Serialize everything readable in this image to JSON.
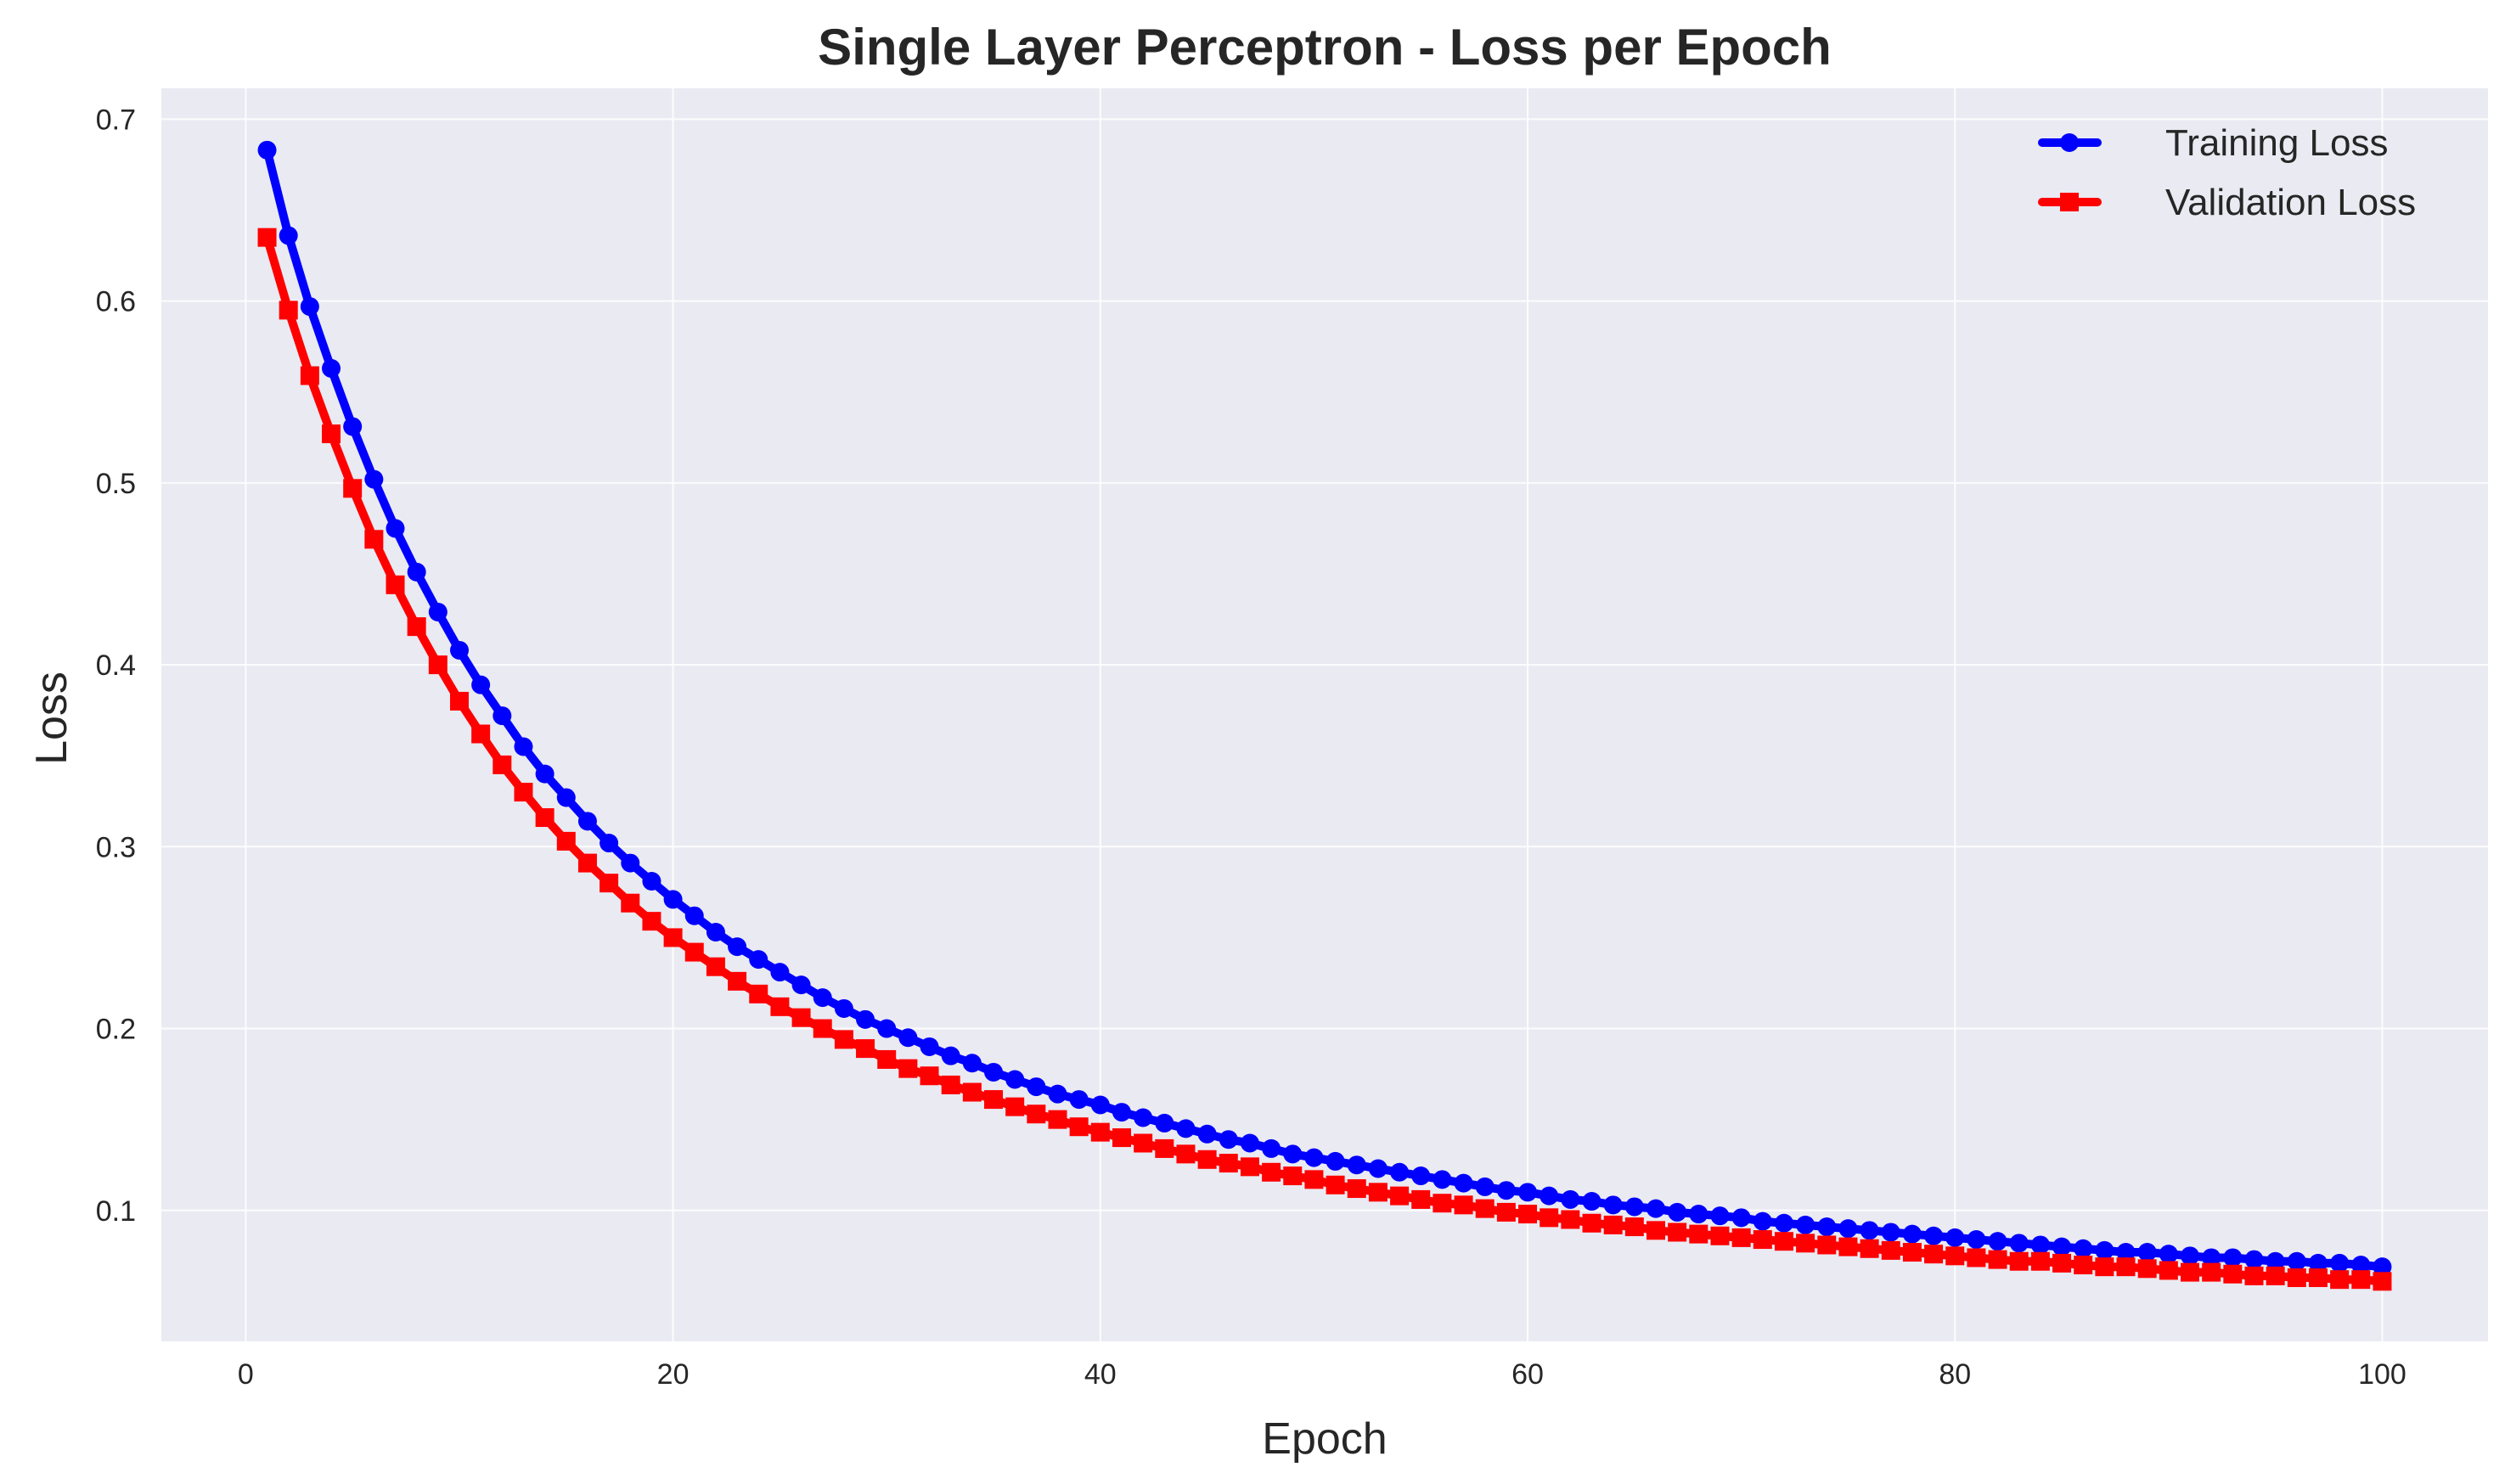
{
  "chart_data": {
    "type": "line",
    "title": "Single Layer Perceptron - Loss per Epoch",
    "xlabel": "Epoch",
    "ylabel": "Loss",
    "xlim": [
      -3.95,
      104.95
    ],
    "ylim": [
      0.028,
      0.717
    ],
    "xticks": [
      0,
      20,
      40,
      60,
      80,
      100
    ],
    "yticks": [
      0.1,
      0.2,
      0.3,
      0.4,
      0.5,
      0.6,
      0.7
    ],
    "grid": true,
    "legend_position": "top-right",
    "series": [
      {
        "name": "Training Loss",
        "color": "#0000ff",
        "marker": "circle",
        "train": true
      },
      {
        "name": "Validation Loss",
        "color": "#ff0000",
        "marker": "square",
        "train": false
      }
    ],
    "x": [
      1,
      2,
      3,
      4,
      5,
      6,
      7,
      8,
      9,
      10,
      11,
      12,
      13,
      14,
      15,
      16,
      17,
      18,
      19,
      20,
      21,
      22,
      23,
      24,
      25,
      26,
      27,
      28,
      29,
      30,
      31,
      32,
      33,
      34,
      35,
      36,
      37,
      38,
      39,
      40,
      41,
      42,
      43,
      44,
      45,
      46,
      47,
      48,
      49,
      50,
      51,
      52,
      53,
      54,
      55,
      56,
      57,
      58,
      59,
      60,
      61,
      62,
      63,
      64,
      65,
      66,
      67,
      68,
      69,
      70,
      71,
      72,
      73,
      74,
      75,
      76,
      77,
      78,
      79,
      80,
      81,
      82,
      83,
      84,
      85,
      86,
      87,
      88,
      89,
      90,
      91,
      92,
      93,
      94,
      95,
      96,
      97,
      98,
      99,
      100
    ],
    "training": [
      0.683,
      0.636,
      0.597,
      0.563,
      0.531,
      0.502,
      0.475,
      0.451,
      0.429,
      0.408,
      0.389,
      0.372,
      0.355,
      0.34,
      0.327,
      0.314,
      0.302,
      0.291,
      0.281,
      0.271,
      0.262,
      0.253,
      0.245,
      0.238,
      0.231,
      0.224,
      0.217,
      0.211,
      0.205,
      0.2,
      0.195,
      0.19,
      0.185,
      0.181,
      0.176,
      0.172,
      0.168,
      0.164,
      0.161,
      0.158,
      0.154,
      0.151,
      0.148,
      0.145,
      0.142,
      0.139,
      0.137,
      0.134,
      0.131,
      0.129,
      0.127,
      0.125,
      0.123,
      0.121,
      0.119,
      0.117,
      0.115,
      0.113,
      0.111,
      0.11,
      0.108,
      0.106,
      0.105,
      0.103,
      0.102,
      0.101,
      0.099,
      0.098,
      0.097,
      0.096,
      0.094,
      0.093,
      0.092,
      0.091,
      0.09,
      0.089,
      0.088,
      0.087,
      0.086,
      0.085,
      0.084,
      0.083,
      0.082,
      0.081,
      0.08,
      0.079,
      0.078,
      0.077,
      0.077,
      0.076,
      0.075,
      0.074,
      0.074,
      0.073,
      0.072,
      0.072,
      0.071,
      0.071,
      0.07,
      0.069
    ],
    "validation": [
      0.635,
      0.595,
      0.559,
      0.527,
      0.497,
      0.469,
      0.444,
      0.421,
      0.4,
      0.38,
      0.362,
      0.345,
      0.33,
      0.316,
      0.303,
      0.291,
      0.28,
      0.269,
      0.259,
      0.25,
      0.242,
      0.234,
      0.226,
      0.219,
      0.212,
      0.206,
      0.2,
      0.194,
      0.189,
      0.183,
      0.178,
      0.174,
      0.169,
      0.165,
      0.161,
      0.157,
      0.153,
      0.15,
      0.146,
      0.143,
      0.14,
      0.137,
      0.134,
      0.131,
      0.128,
      0.126,
      0.124,
      0.121,
      0.119,
      0.117,
      0.114,
      0.112,
      0.11,
      0.108,
      0.106,
      0.104,
      0.103,
      0.101,
      0.099,
      0.098,
      0.096,
      0.095,
      0.093,
      0.092,
      0.091,
      0.089,
      0.088,
      0.087,
      0.086,
      0.085,
      0.084,
      0.083,
      0.082,
      0.081,
      0.08,
      0.079,
      0.078,
      0.077,
      0.076,
      0.075,
      0.074,
      0.073,
      0.072,
      0.072,
      0.071,
      0.07,
      0.069,
      0.069,
      0.068,
      0.067,
      0.066,
      0.066,
      0.065,
      0.064,
      0.064,
      0.063,
      0.063,
      0.062,
      0.062,
      0.061
    ]
  }
}
